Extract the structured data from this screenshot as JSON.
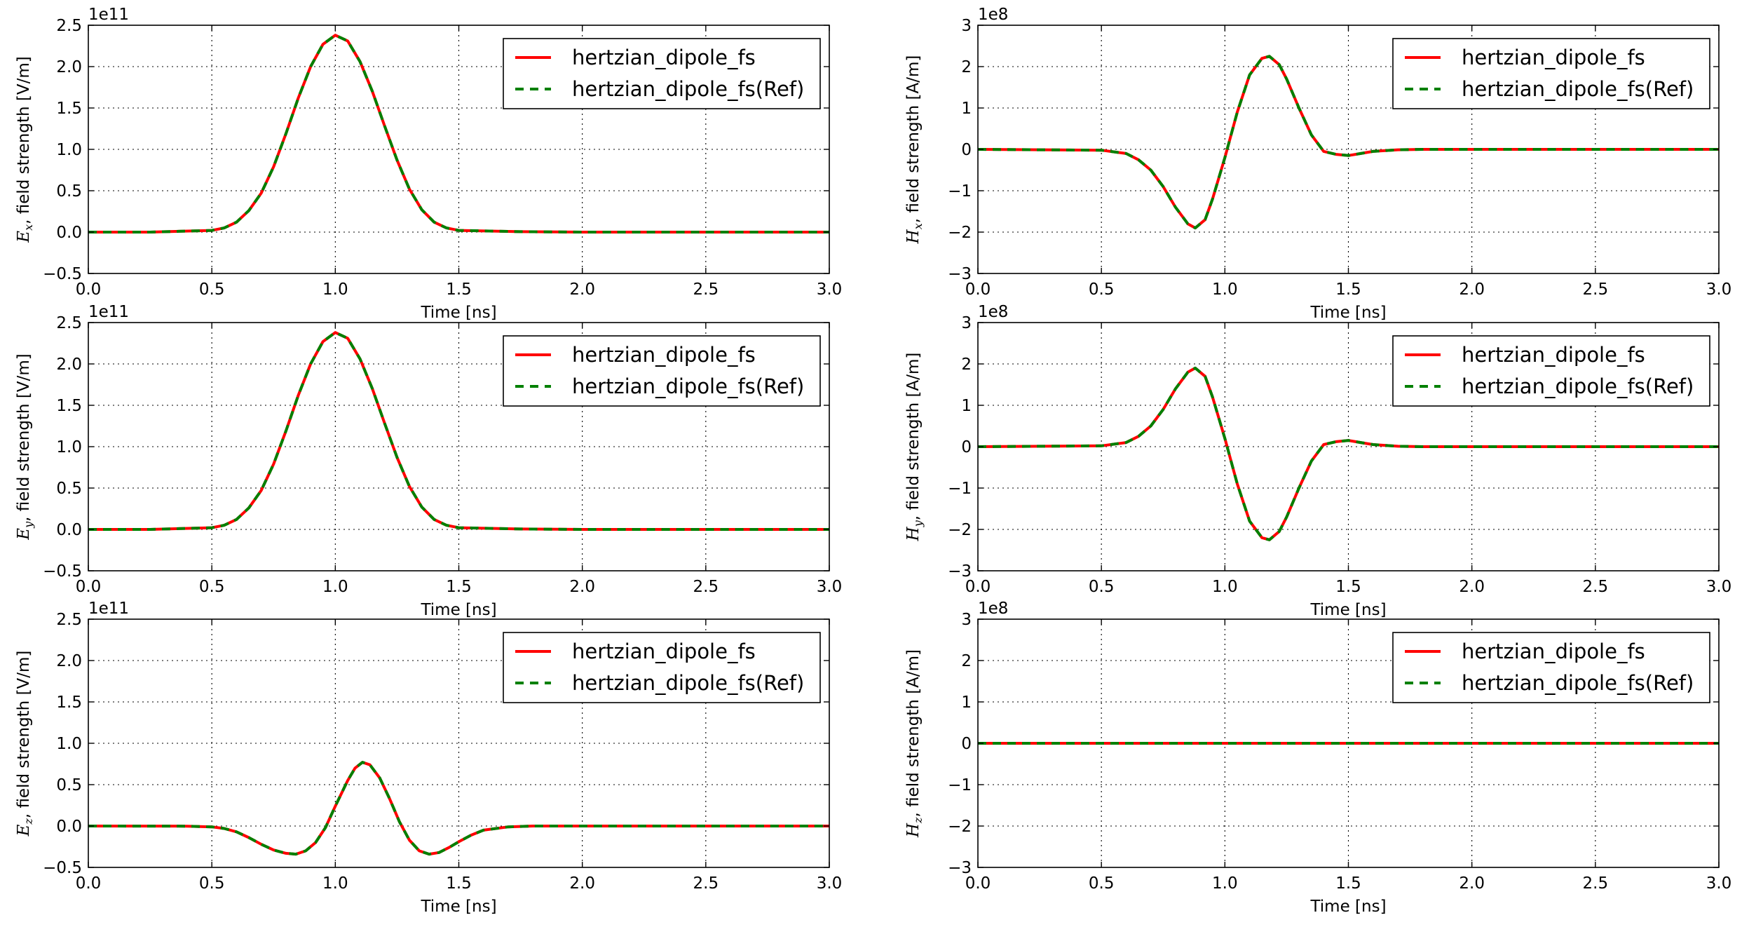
{
  "figure": {
    "legend_placement": "upper-right",
    "grid": true
  },
  "chart_data": [
    {
      "type": "line",
      "xlabel": "Time [ns]",
      "ylabel_var": "E",
      "ylabel_sub": "x",
      "ylabel_rest": ", field strength [V/m]",
      "offset_text": "1e11",
      "xlim": [
        0.0,
        3.0
      ],
      "ylim": [
        -0.5,
        2.5
      ],
      "x_ticks": [
        0.0,
        0.5,
        1.0,
        1.5,
        2.0,
        2.5,
        3.0
      ],
      "x_tick_labels": [
        "0.0",
        "0.5",
        "1.0",
        "1.5",
        "2.0",
        "2.5",
        "3.0"
      ],
      "y_ticks": [
        -0.5,
        0.0,
        0.5,
        1.0,
        1.5,
        2.0,
        2.5
      ],
      "y_tick_labels": [
        "−0.5",
        "0.0",
        "0.5",
        "1.0",
        "1.5",
        "2.0",
        "2.5"
      ],
      "series": [
        {
          "name": "hertzian_dipole_fs",
          "color": "#ff0000",
          "style": "solid"
        },
        {
          "name": "hertzian_dipole_fs(Ref)",
          "color": "#008000",
          "style": "dashed"
        }
      ],
      "x": [
        0.0,
        0.25,
        0.5,
        0.55,
        0.6,
        0.65,
        0.7,
        0.75,
        0.8,
        0.85,
        0.9,
        0.95,
        1.0,
        1.05,
        1.1,
        1.15,
        1.2,
        1.25,
        1.3,
        1.35,
        1.4,
        1.45,
        1.5,
        1.75,
        2.0,
        2.5,
        3.0
      ],
      "y": [
        0.0,
        0.0,
        0.02,
        0.05,
        0.12,
        0.26,
        0.47,
        0.79,
        1.19,
        1.62,
        2.0,
        2.27,
        2.38,
        2.31,
        2.06,
        1.7,
        1.28,
        0.87,
        0.52,
        0.27,
        0.12,
        0.05,
        0.02,
        0.005,
        0.0,
        0.0,
        0.0
      ]
    },
    {
      "type": "line",
      "xlabel": "Time [ns]",
      "ylabel_var": "H",
      "ylabel_sub": "x",
      "ylabel_rest": ", field strength [A/m]",
      "offset_text": "1e8",
      "xlim": [
        0.0,
        3.0
      ],
      "ylim": [
        -3,
        3
      ],
      "x_ticks": [
        0.0,
        0.5,
        1.0,
        1.5,
        2.0,
        2.5,
        3.0
      ],
      "x_tick_labels": [
        "0.0",
        "0.5",
        "1.0",
        "1.5",
        "2.0",
        "2.5",
        "3.0"
      ],
      "y_ticks": [
        -3,
        -2,
        -1,
        0,
        1,
        2,
        3
      ],
      "y_tick_labels": [
        "−3",
        "−2",
        "−1",
        "0",
        "1",
        "2",
        "3"
      ],
      "series": [
        {
          "name": "hertzian_dipole_fs",
          "color": "#ff0000",
          "style": "solid"
        },
        {
          "name": "hertzian_dipole_fs(Ref)",
          "color": "#008000",
          "style": "dashed"
        }
      ],
      "x": [
        0.0,
        0.5,
        0.6,
        0.65,
        0.7,
        0.75,
        0.8,
        0.85,
        0.88,
        0.92,
        0.95,
        1.0,
        1.05,
        1.1,
        1.15,
        1.18,
        1.22,
        1.25,
        1.3,
        1.35,
        1.4,
        1.45,
        1.5,
        1.55,
        1.6,
        1.7,
        1.8,
        2.0,
        3.0
      ],
      "y": [
        0.0,
        -0.02,
        -0.1,
        -0.25,
        -0.5,
        -0.9,
        -1.4,
        -1.8,
        -1.9,
        -1.7,
        -1.2,
        -0.2,
        0.9,
        1.8,
        2.2,
        2.25,
        2.05,
        1.7,
        1.0,
        0.35,
        -0.05,
        -0.12,
        -0.15,
        -0.1,
        -0.05,
        -0.01,
        0.0,
        0.0,
        0.0
      ]
    },
    {
      "type": "line",
      "xlabel": "Time [ns]",
      "ylabel_var": "E",
      "ylabel_sub": "y",
      "ylabel_rest": ", field strength [V/m]",
      "offset_text": "1e11",
      "xlim": [
        0.0,
        3.0
      ],
      "ylim": [
        -0.5,
        2.5
      ],
      "x_ticks": [
        0.0,
        0.5,
        1.0,
        1.5,
        2.0,
        2.5,
        3.0
      ],
      "x_tick_labels": [
        "0.0",
        "0.5",
        "1.0",
        "1.5",
        "2.0",
        "2.5",
        "3.0"
      ],
      "y_ticks": [
        -0.5,
        0.0,
        0.5,
        1.0,
        1.5,
        2.0,
        2.5
      ],
      "y_tick_labels": [
        "−0.5",
        "0.0",
        "0.5",
        "1.0",
        "1.5",
        "2.0",
        "2.5"
      ],
      "series": [
        {
          "name": "hertzian_dipole_fs",
          "color": "#ff0000",
          "style": "solid"
        },
        {
          "name": "hertzian_dipole_fs(Ref)",
          "color": "#008000",
          "style": "dashed"
        }
      ],
      "x": [
        0.0,
        0.25,
        0.5,
        0.55,
        0.6,
        0.65,
        0.7,
        0.75,
        0.8,
        0.85,
        0.9,
        0.95,
        1.0,
        1.05,
        1.1,
        1.15,
        1.2,
        1.25,
        1.3,
        1.35,
        1.4,
        1.45,
        1.5,
        1.75,
        2.0,
        2.5,
        3.0
      ],
      "y": [
        0.0,
        0.0,
        0.02,
        0.05,
        0.12,
        0.26,
        0.47,
        0.79,
        1.19,
        1.62,
        2.0,
        2.27,
        2.38,
        2.31,
        2.06,
        1.7,
        1.28,
        0.87,
        0.52,
        0.27,
        0.12,
        0.05,
        0.02,
        0.005,
        0.0,
        0.0,
        0.0
      ]
    },
    {
      "type": "line",
      "xlabel": "Time [ns]",
      "ylabel_var": "H",
      "ylabel_sub": "y",
      "ylabel_rest": ", field strength [A/m]",
      "offset_text": "1e8",
      "xlim": [
        0.0,
        3.0
      ],
      "ylim": [
        -3,
        3
      ],
      "x_ticks": [
        0.0,
        0.5,
        1.0,
        1.5,
        2.0,
        2.5,
        3.0
      ],
      "x_tick_labels": [
        "0.0",
        "0.5",
        "1.0",
        "1.5",
        "2.0",
        "2.5",
        "3.0"
      ],
      "y_ticks": [
        -3,
        -2,
        -1,
        0,
        1,
        2,
        3
      ],
      "y_tick_labels": [
        "−3",
        "−2",
        "−1",
        "0",
        "1",
        "2",
        "3"
      ],
      "series": [
        {
          "name": "hertzian_dipole_fs",
          "color": "#ff0000",
          "style": "solid"
        },
        {
          "name": "hertzian_dipole_fs(Ref)",
          "color": "#008000",
          "style": "dashed"
        }
      ],
      "x": [
        0.0,
        0.5,
        0.6,
        0.65,
        0.7,
        0.75,
        0.8,
        0.85,
        0.88,
        0.92,
        0.95,
        1.0,
        1.05,
        1.1,
        1.15,
        1.18,
        1.22,
        1.25,
        1.3,
        1.35,
        1.4,
        1.45,
        1.5,
        1.55,
        1.6,
        1.7,
        1.8,
        2.0,
        3.0
      ],
      "y": [
        0.0,
        0.02,
        0.1,
        0.25,
        0.5,
        0.9,
        1.4,
        1.8,
        1.9,
        1.7,
        1.2,
        0.2,
        -0.9,
        -1.8,
        -2.2,
        -2.25,
        -2.05,
        -1.7,
        -1.0,
        -0.35,
        0.05,
        0.12,
        0.15,
        0.1,
        0.05,
        0.01,
        0.0,
        0.0,
        0.0
      ]
    },
    {
      "type": "line",
      "xlabel": "Time [ns]",
      "ylabel_var": "E",
      "ylabel_sub": "z",
      "ylabel_rest": ", field strength [V/m]",
      "offset_text": "1e11",
      "xlim": [
        0.0,
        3.0
      ],
      "ylim": [
        -0.5,
        2.5
      ],
      "x_ticks": [
        0.0,
        0.5,
        1.0,
        1.5,
        2.0,
        2.5,
        3.0
      ],
      "x_tick_labels": [
        "0.0",
        "0.5",
        "1.0",
        "1.5",
        "2.0",
        "2.5",
        "3.0"
      ],
      "y_ticks": [
        -0.5,
        0.0,
        0.5,
        1.0,
        1.5,
        2.0,
        2.5
      ],
      "y_tick_labels": [
        "−0.5",
        "0.0",
        "0.5",
        "1.0",
        "1.5",
        "2.0",
        "2.5"
      ],
      "series": [
        {
          "name": "hertzian_dipole_fs",
          "color": "#ff0000",
          "style": "solid"
        },
        {
          "name": "hertzian_dipole_fs(Ref)",
          "color": "#008000",
          "style": "dashed"
        }
      ],
      "x": [
        0.0,
        0.4,
        0.5,
        0.55,
        0.6,
        0.65,
        0.7,
        0.75,
        0.8,
        0.84,
        0.88,
        0.92,
        0.96,
        1.0,
        1.05,
        1.08,
        1.11,
        1.14,
        1.18,
        1.22,
        1.26,
        1.3,
        1.34,
        1.38,
        1.42,
        1.46,
        1.5,
        1.55,
        1.6,
        1.7,
        1.8,
        2.0,
        3.0
      ],
      "y": [
        0.0,
        -0.002,
        -0.01,
        -0.03,
        -0.07,
        -0.14,
        -0.22,
        -0.29,
        -0.33,
        -0.34,
        -0.3,
        -0.2,
        -0.02,
        0.24,
        0.55,
        0.7,
        0.77,
        0.74,
        0.58,
        0.33,
        0.05,
        -0.17,
        -0.3,
        -0.34,
        -0.32,
        -0.26,
        -0.19,
        -0.11,
        -0.05,
        -0.01,
        0.0,
        0.0,
        0.0
      ]
    },
    {
      "type": "line",
      "xlabel": "Time [ns]",
      "ylabel_var": "H",
      "ylabel_sub": "z",
      "ylabel_rest": ", field strength [A/m]",
      "offset_text": "1e8",
      "xlim": [
        0.0,
        3.0
      ],
      "ylim": [
        -3,
        3
      ],
      "x_ticks": [
        0.0,
        0.5,
        1.0,
        1.5,
        2.0,
        2.5,
        3.0
      ],
      "x_tick_labels": [
        "0.0",
        "0.5",
        "1.0",
        "1.5",
        "2.0",
        "2.5",
        "3.0"
      ],
      "y_ticks": [
        -3,
        -2,
        -1,
        0,
        1,
        2,
        3
      ],
      "y_tick_labels": [
        "−3",
        "−2",
        "−1",
        "0",
        "1",
        "2",
        "3"
      ],
      "series": [
        {
          "name": "hertzian_dipole_fs",
          "color": "#ff0000",
          "style": "solid"
        },
        {
          "name": "hertzian_dipole_fs(Ref)",
          "color": "#008000",
          "style": "dashed"
        }
      ],
      "x": [
        0.0,
        1.0,
        2.0,
        3.0
      ],
      "y": [
        0.0,
        0.0,
        0.0,
        0.0
      ]
    }
  ]
}
